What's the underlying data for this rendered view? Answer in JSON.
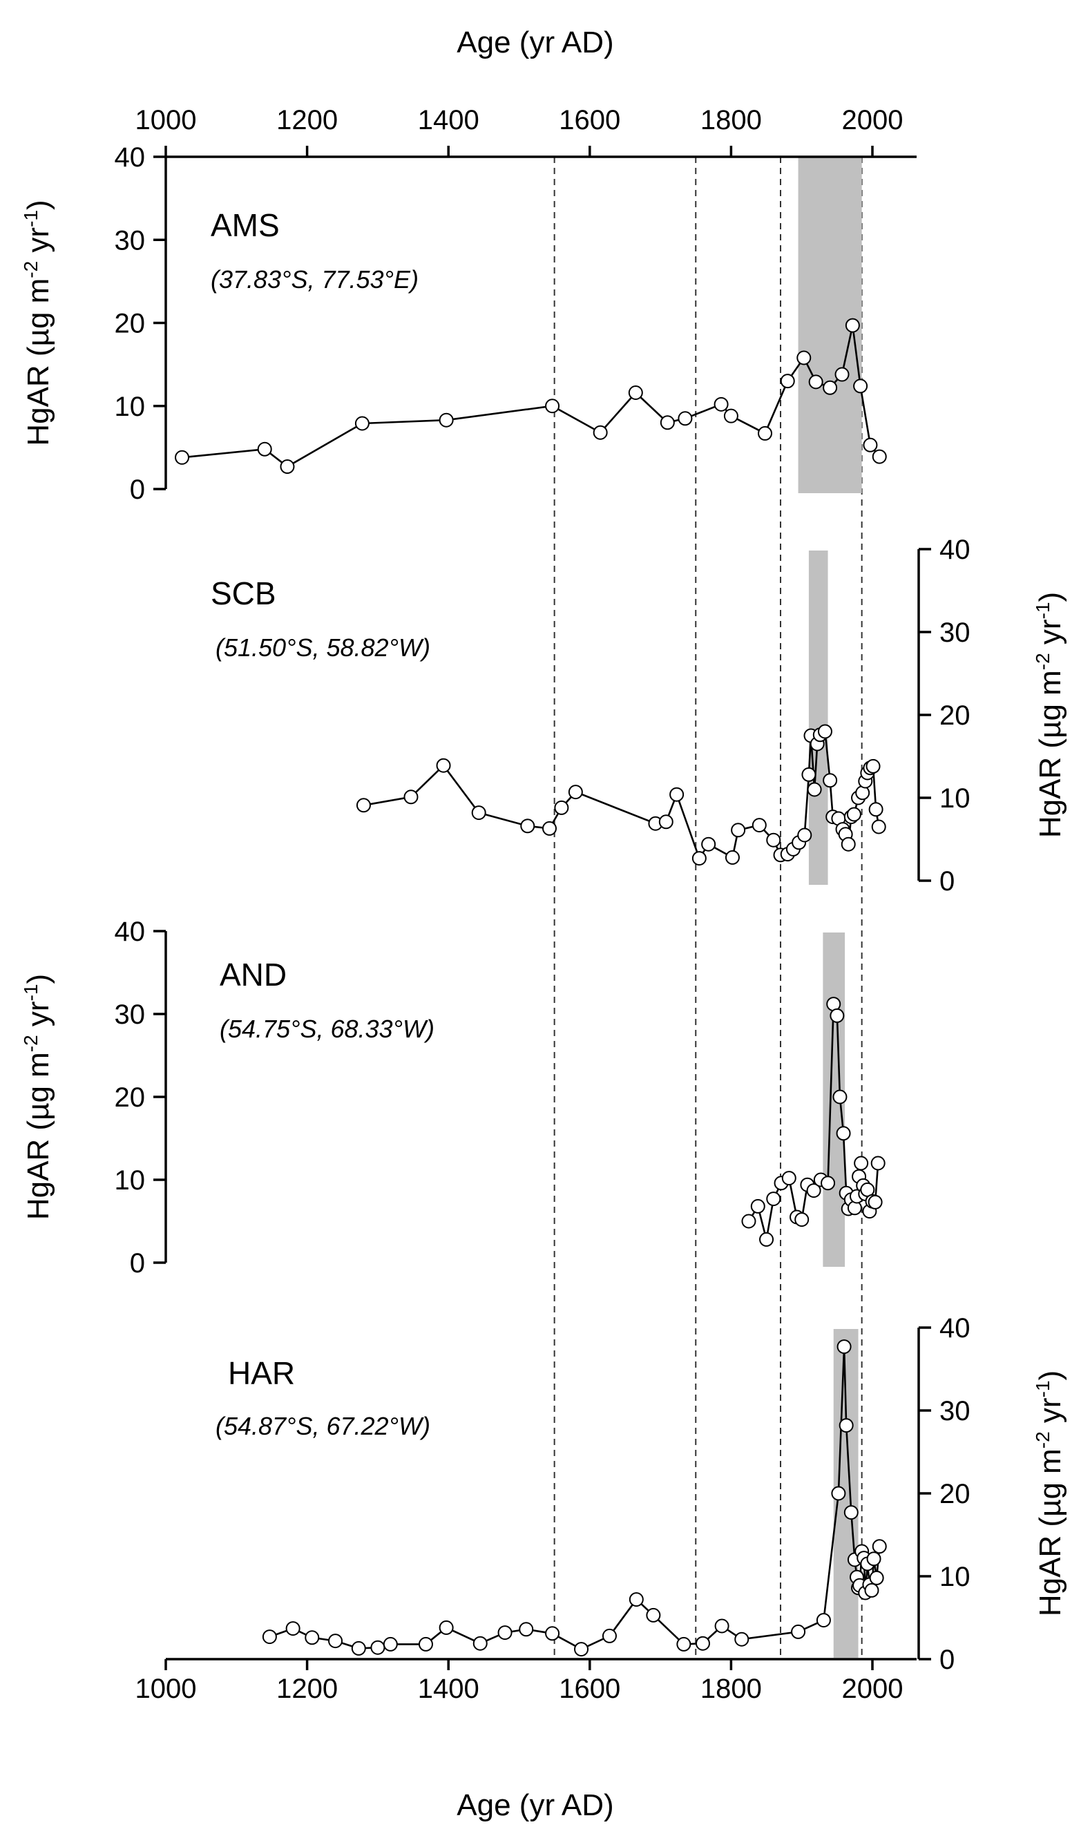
{
  "chart_data": {
    "type": "line",
    "x_axis_title": "Age (yr AD)",
    "x_ticks": [
      1000,
      1200,
      1400,
      1600,
      1800,
      2000
    ],
    "xlim": [
      1000,
      2050
    ],
    "y_axis_title": "HgAR (µg m",
    "y_axis_title_sup1": "-2",
    "y_axis_title_mid": " yr",
    "y_axis_title_sup2": "-1",
    "y_axis_title_end": ")",
    "y_ticks": [
      0,
      10,
      20,
      30,
      40
    ],
    "ylim": [
      0,
      40
    ],
    "reference_lines_x": [
      1550,
      1750,
      1870,
      1985
    ],
    "colors": {
      "band": "#c0c0c0",
      "line": "#000000",
      "marker_fill": "#ffffff"
    },
    "panels": [
      {
        "id": "AMS",
        "name": "AMS",
        "coords": "(37.83°S, 77.53°E)",
        "y_axis_side": "left",
        "shaded_band_x": [
          1895,
          1985
        ],
        "x": [
          1023,
          1140,
          1172,
          1278,
          1397,
          1547,
          1615,
          1665,
          1710,
          1735,
          1786,
          1800,
          1848,
          1880,
          1903,
          1920,
          1940,
          1957,
          1972,
          1983,
          1997,
          2010
        ],
        "y": [
          3.8,
          4.8,
          2.7,
          7.9,
          8.3,
          10.0,
          6.8,
          11.6,
          8.0,
          8.5,
          10.2,
          8.8,
          6.7,
          13.0,
          15.8,
          12.9,
          12.2,
          13.8,
          19.7,
          12.4,
          5.3,
          3.9
        ]
      },
      {
        "id": "SCB",
        "name": "SCB",
        "coords": "(51.50°S, 58.82°W)",
        "y_axis_side": "right",
        "shaded_band_x": [
          1910,
          1937
        ],
        "x": [
          1280,
          1347,
          1393,
          1443,
          1512,
          1543,
          1560,
          1580,
          1693,
          1708,
          1723,
          1755,
          1768,
          1802,
          1810,
          1840,
          1860,
          1870,
          1880,
          1888,
          1896,
          1904,
          1910,
          1913,
          1918,
          1922,
          1926,
          1933,
          1940,
          1944,
          1952,
          1958,
          1962,
          1966,
          1970,
          1974,
          1980,
          1986,
          1990,
          1993,
          1997,
          2001,
          2005,
          2009
        ],
        "y": [
          9.1,
          10.1,
          13.9,
          8.2,
          6.6,
          6.3,
          8.8,
          10.7,
          6.9,
          7.1,
          10.4,
          2.7,
          4.4,
          2.8,
          6.1,
          6.7,
          4.9,
          3.1,
          3.2,
          3.8,
          4.6,
          5.5,
          12.8,
          17.5,
          11.0,
          16.5,
          17.6,
          18.0,
          12.1,
          7.7,
          7.5,
          6.2,
          5.6,
          4.4,
          7.7,
          8.0,
          10.0,
          10.6,
          12.0,
          13.0,
          13.6,
          13.8,
          8.6,
          6.5
        ]
      },
      {
        "id": "AND",
        "name": "AND",
        "coords": "(54.75°S, 68.33°W)",
        "y_axis_side": "left",
        "shaded_band_x": [
          1930,
          1961
        ],
        "x": [
          1825,
          1838,
          1850,
          1860,
          1871,
          1882,
          1893,
          1900,
          1908,
          1917,
          1927,
          1937,
          1945,
          1950,
          1954,
          1959,
          1963,
          1966,
          1970,
          1975,
          1978,
          1981,
          1984,
          1987,
          1990,
          1993,
          1996,
          2000,
          2004,
          2008
        ],
        "y": [
          5.0,
          6.8,
          2.8,
          7.7,
          9.6,
          10.2,
          5.5,
          5.2,
          9.4,
          8.7,
          10.0,
          9.6,
          31.2,
          29.8,
          20.0,
          15.6,
          8.4,
          6.5,
          7.6,
          6.6,
          8.0,
          10.4,
          12.0,
          9.3,
          8.3,
          8.8,
          6.2,
          7.4,
          7.3,
          12.0
        ]
      },
      {
        "id": "HAR",
        "name": "HAR",
        "coords": "(54.87°S, 67.22°W)",
        "y_axis_side": "right",
        "shaded_band_x": [
          1945,
          1980
        ],
        "x": [
          1147,
          1180,
          1207,
          1240,
          1273,
          1300,
          1318,
          1368,
          1397,
          1445,
          1480,
          1510,
          1547,
          1588,
          1628,
          1666,
          1690,
          1733,
          1760,
          1787,
          1815,
          1895,
          1931,
          1952,
          1960,
          1963,
          1970,
          1975,
          1978,
          1980,
          1982,
          1985,
          1988,
          1990,
          1993,
          1996,
          1999,
          2002,
          2006,
          2010
        ],
        "y": [
          2.7,
          3.7,
          2.6,
          2.2,
          1.3,
          1.4,
          1.8,
          1.8,
          3.8,
          1.9,
          3.2,
          3.6,
          3.1,
          1.2,
          2.8,
          7.2,
          5.3,
          1.8,
          1.9,
          4.0,
          2.4,
          3.3,
          4.7,
          20.0,
          37.7,
          28.2,
          17.7,
          12.0,
          9.9,
          8.6,
          8.9,
          13.0,
          12.2,
          8.0,
          11.5,
          9.0,
          8.3,
          12.1,
          9.8,
          13.6
        ]
      }
    ]
  }
}
